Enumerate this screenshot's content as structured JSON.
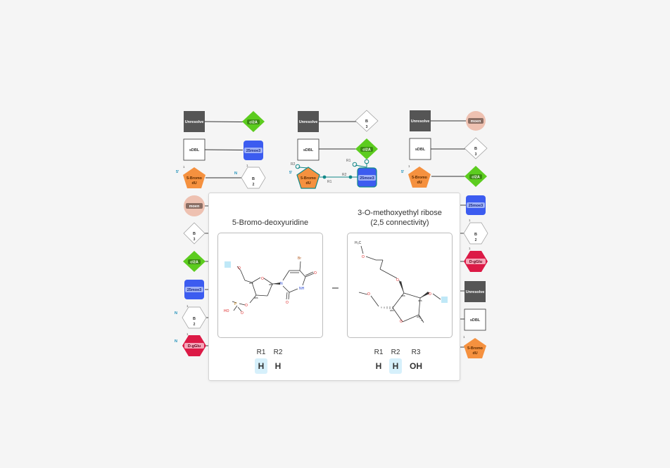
{
  "monomers": {
    "unresolved": "Unresolve",
    "sdbl": "sDBL",
    "cl2a": "cl2A",
    "moe3": "25moe3",
    "bromo_line1": "5-Bromo",
    "bromo_line2": "dU",
    "moen": "moen",
    "dgglu": "D-gGlu",
    "b_letter": "B",
    "num_2": "2",
    "num_3": "3"
  },
  "attach_labels": {
    "five_prime": "5'",
    "n": "N",
    "r1": "R1",
    "r2": "R2",
    "one": "1"
  },
  "tooltip": {
    "left_title": "5-Bromo-deoxyuridine",
    "right_title_line1": "3-O-methoxyethyl ribose",
    "right_title_line2": "(2,5 connectivity)",
    "separator": "–",
    "left_rgroups": [
      {
        "name": "R1",
        "value": "H",
        "highlighted": true
      },
      {
        "name": "R2",
        "value": "H",
        "highlighted": false
      }
    ],
    "right_rgroups": [
      {
        "name": "R1",
        "value": "H",
        "highlighted": false
      },
      {
        "name": "R2",
        "value": "H",
        "highlighted": true
      },
      {
        "name": "R3",
        "value": "OH",
        "highlighted": false
      }
    ],
    "atoms": {
      "br": "Br",
      "o": "O",
      "n": "N",
      "nh": "NH",
      "p": "P",
      "ho": "HO",
      "h3c": "H₃C",
      "abs": "abs"
    }
  },
  "colors": {
    "unresolved": "#555555",
    "cl2a": "#5ccc1f",
    "moe3": "#3c5cf0",
    "bromo": "#f5913f",
    "moen": "#eec1b1",
    "dgglu": "#dc1a46",
    "bond_teal": "#118888",
    "highlight": "#d6f0fb"
  }
}
